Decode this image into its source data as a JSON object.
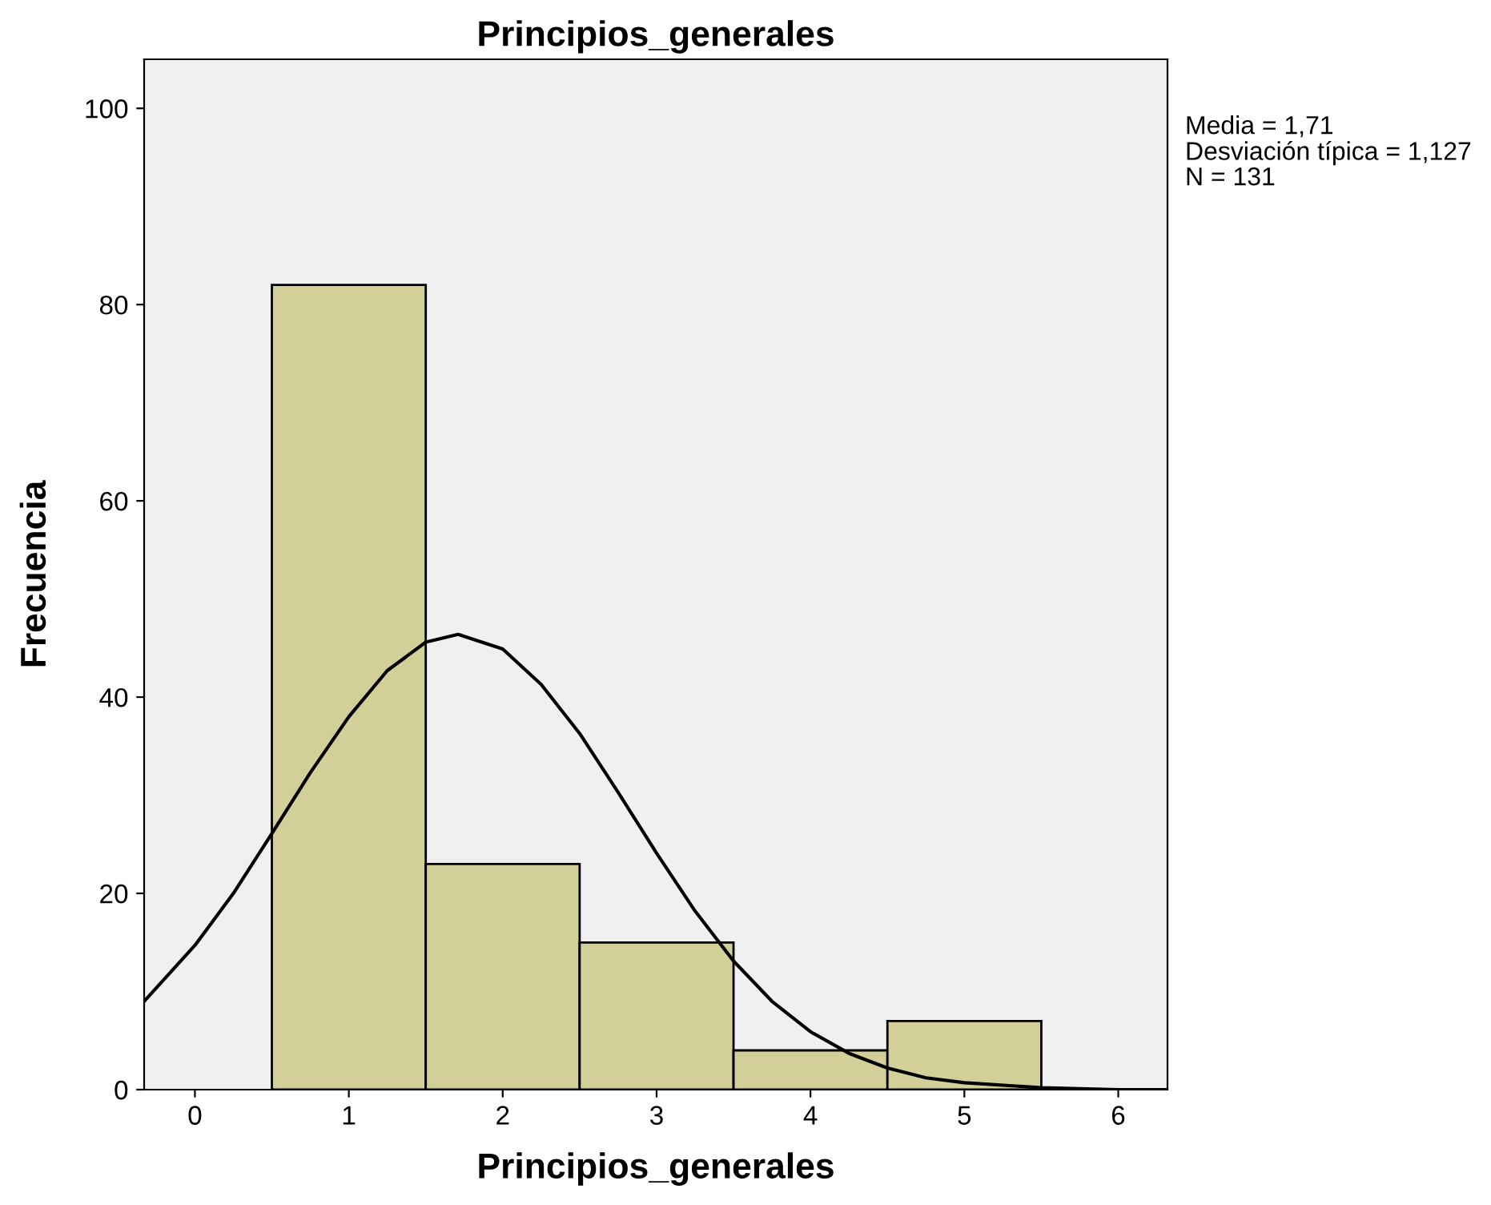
{
  "chart_data": {
    "type": "histogram",
    "title": "Principios_generales",
    "xlabel": "Principios_generales",
    "ylabel": "Frecuencia",
    "bins": [
      0.5,
      1.5,
      2.5,
      3.5,
      4.5,
      5.5
    ],
    "values": [
      82,
      23,
      15,
      4,
      7
    ],
    "color": "#d3cf98",
    "series": [
      {
        "type": "line",
        "color": "#000000",
        "x": [
          -0.33,
          0,
          0.25,
          0.5,
          0.75,
          1,
          1.25,
          1.5,
          1.71,
          2,
          2.25,
          2.5,
          2.75,
          3,
          3.25,
          3.5,
          3.75,
          4,
          4.25,
          4.5,
          4.75,
          5,
          5.5,
          6,
          6.32
        ],
        "values": [
          9.0,
          14.7,
          20.0,
          26.1,
          32.3,
          38.0,
          42.7,
          45.6,
          46.4,
          44.9,
          41.3,
          36.3,
          30.3,
          24.1,
          18.2,
          13.1,
          9.0,
          5.9,
          3.7,
          2.2,
          1.2,
          0.7,
          0.2,
          0.0,
          0.0
        ]
      }
    ],
    "xlim": [
      -0.33,
      6.32
    ],
    "ylim": [
      0,
      105
    ],
    "xticks": [
      0,
      1,
      2,
      3,
      4,
      5,
      6
    ],
    "yticks": [
      0,
      20,
      40,
      60,
      80,
      100
    ],
    "grid": false,
    "annotations": [
      "Media = 1,71",
      "Desviación típica = 1,127",
      "N = 131"
    ]
  }
}
